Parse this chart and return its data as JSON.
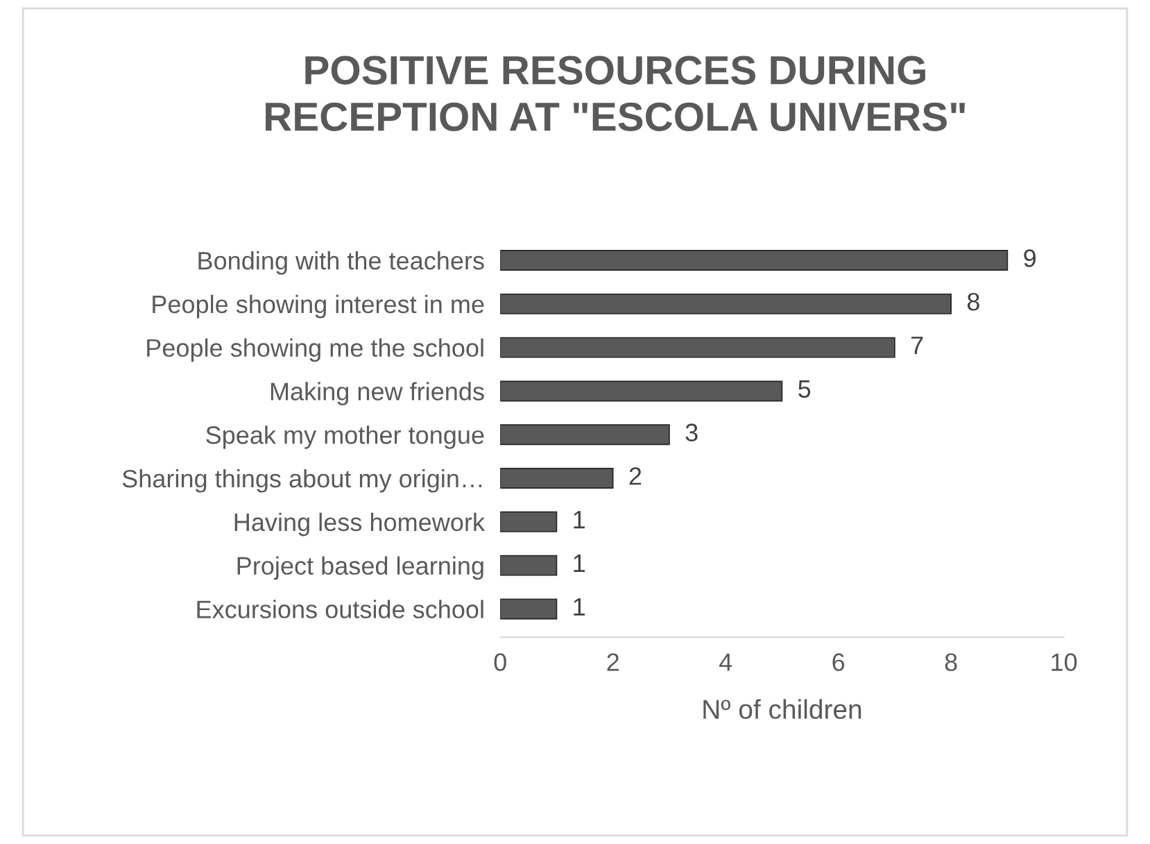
{
  "chart_data": {
    "type": "bar",
    "orientation": "horizontal",
    "title": "POSITIVE RESOURCES DURING\nRECEPTION AT \"ESCOLA UNIVERS\"",
    "xlabel": "Nº of children",
    "categories": [
      "Bonding with the teachers",
      "People showing interest in me",
      "People showing me the school",
      "Making new friends",
      "Speak my mother tongue",
      "Sharing things about my origin…",
      "Having less homework",
      "Project based learning",
      "Excursions outside school"
    ],
    "values": [
      9,
      8,
      7,
      5,
      3,
      2,
      1,
      1,
      1
    ],
    "color": "#595959",
    "xlim": [
      0,
      10
    ],
    "xticks": [
      0,
      2,
      4,
      6,
      8,
      10
    ],
    "data_labels": true,
    "grid": false,
    "legend": false
  }
}
